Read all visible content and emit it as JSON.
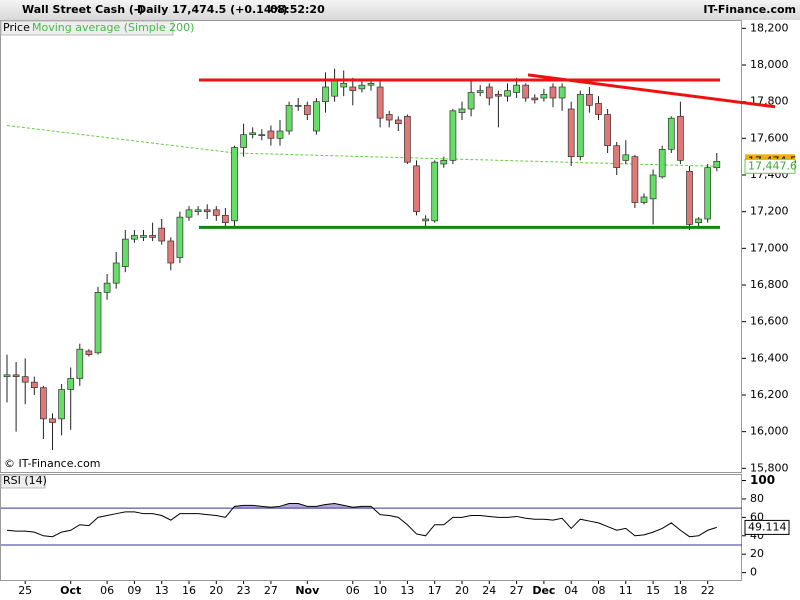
{
  "chart_data": {
    "type": "candlestick",
    "title": "Wall Street Cash (-)",
    "period": "Daily",
    "quote": "17,474.5 (+0.14%)",
    "time": "08:52:20",
    "brand": "IT-Finance.com",
    "copyright": "© IT-Finance.com",
    "price_name": "Price",
    "categories": [
      null,
      null,
      "25",
      null,
      null,
      null,
      null,
      "Oct",
      null,
      null,
      null,
      "06",
      null,
      null,
      "09",
      null,
      null,
      "13",
      null,
      null,
      "16",
      null,
      null,
      "20",
      null,
      null,
      "23",
      null,
      null,
      "27",
      null,
      null,
      null,
      "Nov",
      null,
      null,
      null,
      null,
      "06",
      null,
      null,
      "10",
      null,
      null,
      "13",
      null,
      null,
      "17",
      null,
      null,
      "20",
      null,
      null,
      "24",
      null,
      null,
      "27",
      null,
      null,
      "Dec",
      null,
      null,
      "04",
      null,
      null,
      "08",
      null,
      null,
      "11",
      null,
      null,
      "15",
      null,
      null,
      "18",
      null,
      null,
      "22",
      null
    ],
    "candles": {
      "colors": {
        "up": "#66dd66",
        "down": "#e07878"
      },
      "open": [
        16300,
        16310,
        16300,
        16270,
        16240,
        16070,
        16070,
        16230,
        16290,
        16440,
        16430,
        16760,
        16810,
        16900,
        17050,
        17060,
        17070,
        17110,
        17040,
        16950,
        17170,
        17200,
        17210,
        17210,
        17180,
        17150,
        17550,
        17620,
        17620,
        17640,
        17600,
        17640,
        17780,
        17780,
        17640,
        17800,
        17830,
        17880,
        17880,
        17870,
        17890,
        17880,
        17730,
        17700,
        17720,
        17450,
        17150,
        17150,
        17460,
        17480,
        17740,
        17760,
        17850,
        17880,
        17840,
        17830,
        17850,
        17890,
        17820,
        17820,
        17880,
        17820,
        17760,
        17500,
        17840,
        17790,
        17730,
        17560,
        17480,
        17500,
        17250,
        17270,
        17390,
        17540,
        17720,
        17420,
        17140,
        17160,
        17440
      ],
      "high": [
        16420,
        16380,
        16400,
        16300,
        16250,
        16100,
        16260,
        16350,
        16480,
        16450,
        16790,
        16860,
        16980,
        17100,
        17100,
        17100,
        17140,
        17160,
        17060,
        17200,
        17230,
        17230,
        17240,
        17230,
        17220,
        17560,
        17680,
        17660,
        17650,
        17670,
        17700,
        17800,
        17820,
        17800,
        17820,
        17960,
        17980,
        17970,
        17930,
        17920,
        17920,
        17920,
        17750,
        17720,
        17730,
        17480,
        17180,
        17480,
        17500,
        17760,
        17800,
        17920,
        17890,
        17900,
        17860,
        17900,
        17930,
        17900,
        17840,
        17870,
        17900,
        17900,
        17800,
        17860,
        17880,
        17830,
        17760,
        17580,
        17590,
        17510,
        17300,
        17430,
        17560,
        17720,
        17800,
        17450,
        17170,
        17460,
        17520
      ],
      "low": [
        16160,
        16000,
        16150,
        16200,
        15960,
        15900,
        15980,
        16010,
        16250,
        16410,
        16420,
        16720,
        16780,
        16870,
        17030,
        17040,
        17040,
        17020,
        16880,
        16920,
        17150,
        17180,
        17160,
        17150,
        17110,
        17120,
        17500,
        17600,
        17590,
        17560,
        17560,
        17620,
        17750,
        17700,
        17620,
        17740,
        17800,
        17830,
        17780,
        17850,
        17860,
        17660,
        17660,
        17640,
        17460,
        17180,
        17110,
        17140,
        17440,
        17460,
        17700,
        17720,
        17830,
        17780,
        17660,
        17800,
        17820,
        17800,
        17790,
        17800,
        17770,
        17750,
        17450,
        17480,
        17740,
        17700,
        17520,
        17400,
        17460,
        17220,
        17240,
        17130,
        17380,
        17520,
        17460,
        17100,
        17110,
        17140,
        17420
      ],
      "close": [
        16310,
        16300,
        16270,
        16240,
        16070,
        16050,
        16230,
        16290,
        16450,
        16420,
        16760,
        16810,
        16920,
        17050,
        17070,
        17070,
        17060,
        17040,
        16920,
        17170,
        17210,
        17210,
        17200,
        17180,
        17140,
        17550,
        17620,
        17630,
        17620,
        17600,
        17640,
        17780,
        17780,
        17730,
        17800,
        17880,
        17920,
        17900,
        17860,
        17890,
        17900,
        17710,
        17700,
        17680,
        17470,
        17200,
        17160,
        17470,
        17480,
        17750,
        17760,
        17850,
        17860,
        17820,
        17830,
        17860,
        17890,
        17820,
        17810,
        17840,
        17820,
        17880,
        17500,
        17840,
        17780,
        17730,
        17560,
        17440,
        17510,
        17250,
        17280,
        17400,
        17540,
        17710,
        17480,
        17130,
        17160,
        17440,
        17474.5
      ],
      "last_label": "17,474.5"
    },
    "ma": {
      "name": "Moving average (Simple 200)",
      "color": "#66cc44",
      "last_label": "17,447.6",
      "values": [
        17670,
        17664,
        17658,
        17652,
        17646,
        17640,
        17634,
        17628,
        17622,
        17616,
        17610,
        17604,
        17598,
        17592,
        17586,
        17580,
        17574,
        17568,
        17562,
        17556,
        17550,
        17544,
        17538,
        17532,
        17526,
        17520,
        17519,
        17517,
        17516,
        17515,
        17513,
        17512,
        17510,
        17509,
        17508,
        17506,
        17505,
        17504,
        17502,
        17501,
        17499,
        17498,
        17497,
        17495,
        17494,
        17493,
        17491,
        17490,
        17488,
        17487,
        17486,
        17484,
        17483,
        17482,
        17480,
        17479,
        17477,
        17476,
        17475,
        17473,
        17472,
        17471,
        17469,
        17468,
        17466,
        17465,
        17464,
        17462,
        17461,
        17460,
        17458,
        17457,
        17455,
        17454,
        17453,
        17451,
        17450,
        17449,
        17447.6
      ]
    },
    "levels": [
      {
        "value": 17918,
        "color": "#ee1111"
      },
      {
        "value": 17114,
        "color": "#118811"
      }
    ],
    "trendline": {
      "values": [
        17946,
        17772
      ],
      "color": "#ee1111"
    },
    "ylim": [
      15780,
      18240
    ],
    "yticks": [
      {
        "value": 15800,
        "label": "15,800"
      },
      {
        "value": 16000,
        "label": "16,000"
      },
      {
        "value": 16200,
        "label": "16,200"
      },
      {
        "value": 16400,
        "label": "16,400"
      },
      {
        "value": 16600,
        "label": "16,600"
      },
      {
        "value": 16800,
        "label": "16,800"
      },
      {
        "value": 17000,
        "label": "17,000"
      },
      {
        "value": 17200,
        "label": "17,200"
      },
      {
        "value": 17400,
        "label": "17,400"
      },
      {
        "value": 17600,
        "label": "17,600"
      },
      {
        "value": 17800,
        "label": "17,800"
      },
      {
        "value": 18000,
        "label": "18,000"
      },
      {
        "value": 18200,
        "label": "18,200"
      }
    ],
    "rsi": {
      "name": "RSI (14)",
      "color": "#000000",
      "bands": [
        70,
        30
      ],
      "band_color": "#333399",
      "fill": "#b8a8e0",
      "ylim": [
        -8,
        106
      ],
      "yticks": [
        0,
        20,
        40,
        60,
        80,
        100
      ],
      "values": [
        46,
        45,
        45,
        44,
        40,
        39,
        44,
        46,
        52,
        51,
        60,
        62,
        64,
        66,
        66,
        64,
        64,
        62,
        57,
        64,
        64,
        64,
        63,
        62,
        60,
        72,
        73,
        73,
        72,
        71,
        72,
        75,
        75,
        72,
        72,
        74,
        75,
        73,
        71,
        72,
        72,
        63,
        62,
        60,
        52,
        42,
        40,
        52,
        52,
        60,
        60,
        62,
        62,
        61,
        60,
        60,
        61,
        59,
        58,
        58,
        57,
        59,
        48,
        58,
        56,
        54,
        50,
        46,
        48,
        40,
        41,
        44,
        48,
        54,
        46,
        39,
        40,
        46,
        49.114
      ]
    }
  }
}
